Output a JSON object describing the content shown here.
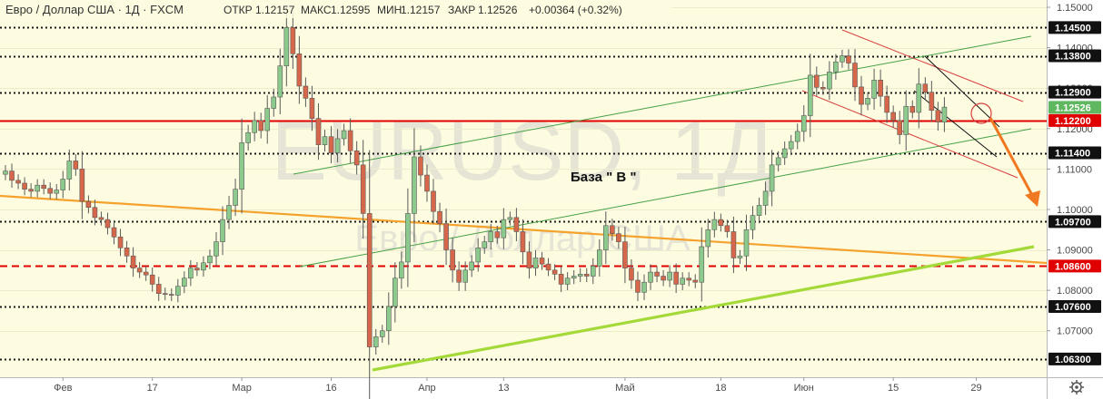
{
  "header": {
    "symbol_title": "Евро / Доллар США · 1Д · FXCM",
    "ohlc": [
      {
        "label": "ОТКР",
        "value": "1.12157"
      },
      {
        "label": "МАКС",
        "value": "1.12595"
      },
      {
        "label": "МИН",
        "value": "1.12157"
      },
      {
        "label": "ЗАКР",
        "value": "1.12526"
      }
    ],
    "change": "+0.00364 (+0.32%)"
  },
  "watermark": {
    "symbol": "EURUSD, 1Д",
    "name": "Евро / Доллар США"
  },
  "annotation": "База \" В \"",
  "colors": {
    "up": "#8cc98c",
    "down": "#d7674a",
    "outline": "#5a5a5a",
    "plot_bg": "#fdfce0",
    "level_line": "#1a1a1a",
    "red_line": "#e10000",
    "orange_line": "#f4a22d",
    "lime_line": "#a4d93a",
    "channel_green": "#46a046",
    "channel_red": "#d64040",
    "arrow": "#f07820",
    "last_price_tag": "#5fb85f",
    "level_tag": "#111111",
    "red_tag": "#e10000"
  },
  "chart_data": {
    "type": "candlestick",
    "ylim": [
      1.0585,
      1.1518
    ],
    "y_ticks": [
      "1.07000",
      "1.08000",
      "1.09000",
      "1.10000",
      "1.11000",
      "1.12000",
      "1.13000",
      "1.14000",
      "1.15000"
    ],
    "x_ticks": [
      "Фев",
      "17",
      "Мар",
      "16",
      "Апр",
      "13",
      "Май",
      "18",
      "Июн",
      "15",
      "29"
    ],
    "dotted_levels": [
      1.145,
      1.138,
      1.129,
      1.114,
      1.097,
      1.076,
      1.063
    ],
    "solid_red_level": 1.122,
    "dashed_red_level": 1.086,
    "last_price": 1.12526,
    "price_tags": [
      {
        "label": "1.14500",
        "value": 1.145,
        "kind": "level"
      },
      {
        "label": "1.13800",
        "value": 1.138,
        "kind": "level"
      },
      {
        "label": "1.12900",
        "value": 1.129,
        "kind": "level"
      },
      {
        "label": "1.12526",
        "value": 1.12526,
        "kind": "last"
      },
      {
        "label": "1.12200",
        "value": 1.122,
        "kind": "red"
      },
      {
        "label": "1.11400",
        "value": 1.114,
        "kind": "level"
      },
      {
        "label": "1.09700",
        "value": 1.097,
        "kind": "level"
      },
      {
        "label": "1.08600",
        "value": 1.086,
        "kind": "red"
      },
      {
        "label": "1.07600",
        "value": 1.076,
        "kind": "level"
      },
      {
        "label": "1.06300",
        "value": 1.063,
        "kind": "level"
      }
    ],
    "close": [
      1.1095,
      1.1072,
      1.1065,
      1.105,
      1.1045,
      1.106,
      1.1052,
      1.104,
      1.1048,
      1.1075,
      1.112,
      1.11,
      1.102,
      1.1005,
      1.098,
      1.0975,
      1.0955,
      1.0932,
      1.0905,
      1.0885,
      1.0855,
      1.0845,
      1.0838,
      1.0815,
      1.0792,
      1.079,
      1.0788,
      1.081,
      1.083,
      1.0855,
      1.085,
      1.0868,
      1.0885,
      1.092,
      1.0975,
      1.101,
      1.105,
      1.1165,
      1.119,
      1.122,
      1.1195,
      1.125,
      1.1278,
      1.1355,
      1.145,
      1.1385,
      1.1305,
      1.1275,
      1.1225,
      1.116,
      1.118,
      1.114,
      1.1175,
      1.1195,
      1.1145,
      1.111,
      1.099,
      1.066,
      1.0685,
      1.07,
      1.076,
      1.083,
      1.087,
      1.099,
      1.113,
      1.1085,
      1.1045,
      1.0995,
      1.0965,
      1.09,
      1.085,
      1.082,
      1.085,
      1.087,
      1.0905,
      1.092,
      1.0945,
      1.093,
      1.0975,
      1.098,
      1.0945,
      1.0895,
      1.0855,
      1.088,
      1.0865,
      1.085,
      1.084,
      1.0815,
      1.083,
      1.0835,
      1.084,
      1.0835,
      1.086,
      1.09,
      1.096,
      1.094,
      1.092,
      1.0855,
      1.0825,
      1.0795,
      1.082,
      1.0845,
      1.0835,
      1.0825,
      1.0845,
      1.0815,
      1.083,
      1.0825,
      1.082,
      1.0908,
      1.095,
      1.0975,
      1.096,
      1.0945,
      1.088,
      1.0885,
      1.095,
      1.0985,
      1.101,
      1.1045,
      1.111,
      1.1128,
      1.115,
      1.1168,
      1.1193,
      1.1232,
      1.1332,
      1.1302,
      1.1298,
      1.134,
      1.1365,
      1.138,
      1.1362,
      1.1303,
      1.126,
      1.1275,
      1.132,
      1.128,
      1.124,
      1.122,
      1.1185,
      1.1255,
      1.124,
      1.131,
      1.129,
      1.1245,
      1.1216,
      1.1253
    ]
  }
}
